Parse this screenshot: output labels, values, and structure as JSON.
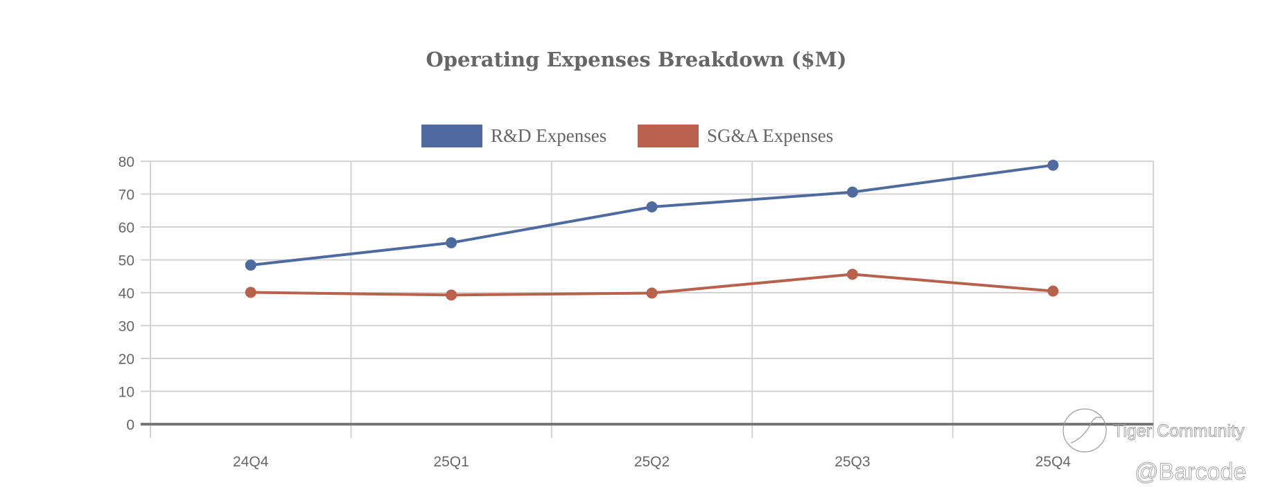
{
  "chart_data": {
    "type": "line",
    "title": "Operating Expenses Breakdown ($M)",
    "xlabel": "",
    "ylabel": "",
    "categories": [
      "24Q4",
      "25Q1",
      "25Q2",
      "25Q3",
      "25Q4"
    ],
    "series": [
      {
        "name": "R&D Expenses",
        "color": "#4E6A9E",
        "values": [
          48.4,
          55.2,
          66.1,
          70.6,
          78.8
        ]
      },
      {
        "name": "SG&A Expenses",
        "color": "#B8614C",
        "values": [
          40.1,
          39.3,
          39.9,
          45.6,
          40.5
        ]
      }
    ],
    "ylim": [
      0,
      80
    ],
    "yticks": [
      0,
      10,
      20,
      30,
      40,
      50,
      60,
      70,
      80
    ],
    "grid": true,
    "legend_position": "top-center"
  },
  "watermark": {
    "brand": "Tiger Community",
    "handle": "@Barcode"
  }
}
